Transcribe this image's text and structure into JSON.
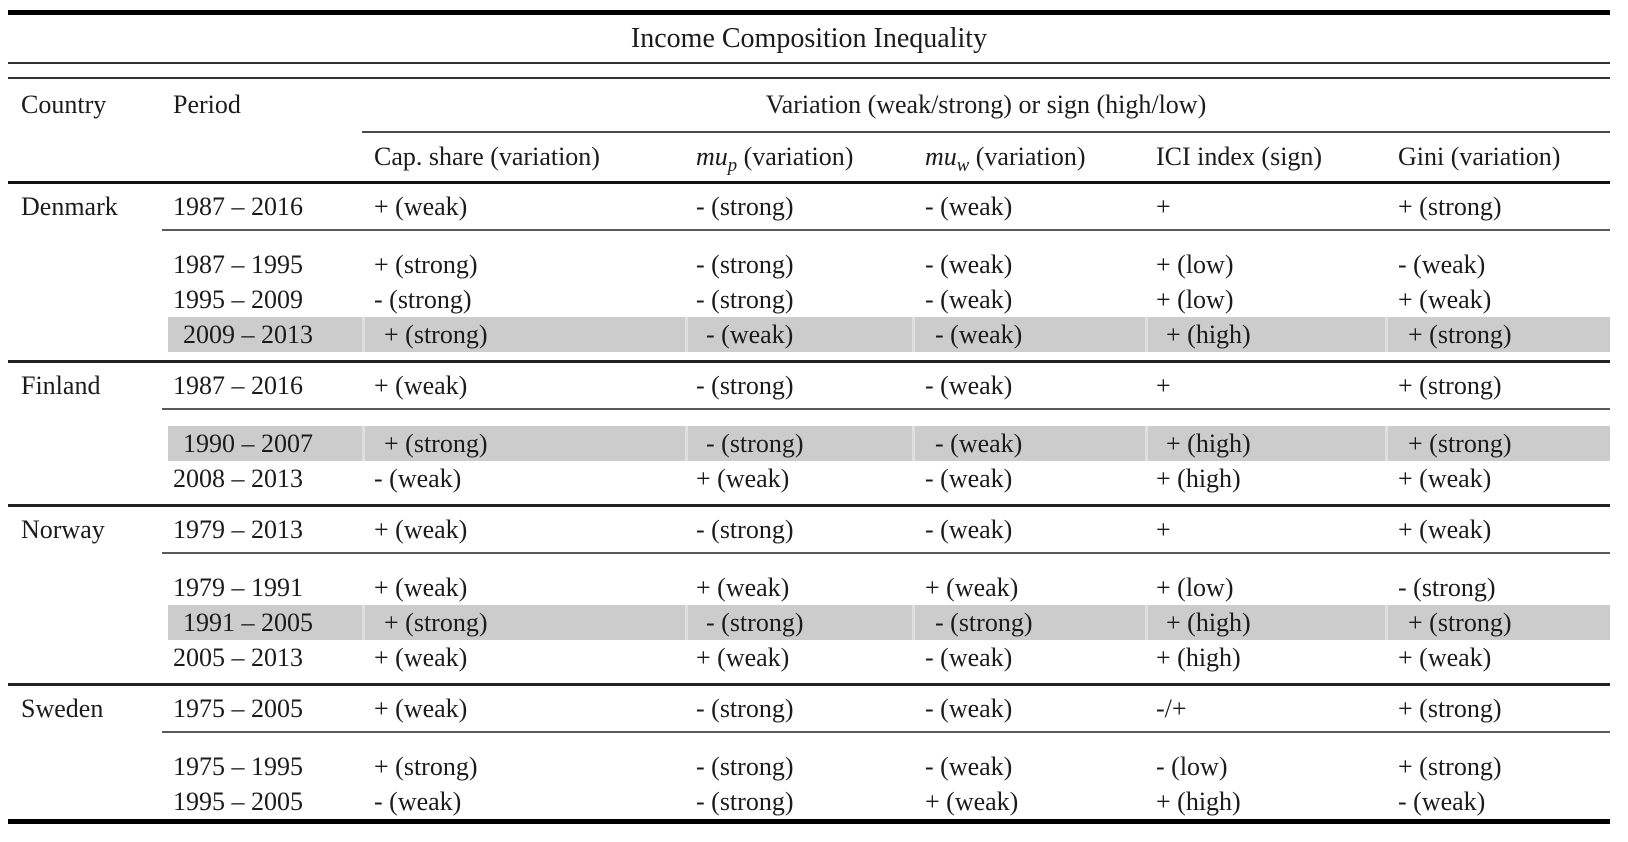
{
  "title": "Income Composition Inequality",
  "colors": {
    "highlight": "#cccccc",
    "seam": "#dfdfdf",
    "text": "#1b1b1b"
  },
  "header": {
    "country": "Country",
    "period": "Period",
    "span": "Variation (weak/strong) or sign (high/low)",
    "columns": [
      {
        "plain": "Cap. share (variation)",
        "it": "",
        "sub": "",
        "rest": ""
      },
      {
        "plain": "",
        "it": "mu",
        "sub": "p",
        "rest": " (variation)"
      },
      {
        "plain": "",
        "it": "mu",
        "sub": "w",
        "rest": " (variation)"
      },
      {
        "plain": "ICI index (sign)",
        "it": "",
        "sub": "",
        "rest": ""
      },
      {
        "plain": "Gini (variation)",
        "it": "",
        "sub": "",
        "rest": ""
      }
    ]
  },
  "sections": [
    {
      "country": "Denmark",
      "summary": {
        "period": "1987 – 2016",
        "cells": [
          "+ (weak)",
          "- (strong)",
          "- (weak)",
          "+",
          "+ (strong)"
        ]
      },
      "rows": [
        {
          "period": "1987 – 1995",
          "highlight": false,
          "cells": [
            "+ (strong)",
            "- (strong)",
            "- (weak)",
            "+ (low)",
            "- (weak)"
          ]
        },
        {
          "period": "1995 – 2009",
          "highlight": false,
          "cells": [
            "- (strong)",
            "- (strong)",
            "- (weak)",
            "+ (low)",
            "+ (weak)"
          ]
        },
        {
          "period": "2009 – 2013",
          "highlight": true,
          "cells": [
            "+ (strong)",
            "- (weak)",
            "- (weak)",
            "+ (high)",
            "+ (strong)"
          ]
        }
      ]
    },
    {
      "country": "Finland",
      "summary": {
        "period": "1987 – 2016",
        "cells": [
          "+ (weak)",
          "- (strong)",
          "- (weak)",
          "+",
          "+ (strong)"
        ]
      },
      "rows": [
        {
          "period": "1990 – 2007",
          "highlight": true,
          "cells": [
            "+ (strong)",
            "- (strong)",
            "- (weak)",
            "+ (high)",
            "+ (strong)"
          ]
        },
        {
          "period": "2008 – 2013",
          "highlight": false,
          "cells": [
            "- (weak)",
            "+ (weak)",
            "- (weak)",
            "+ (high)",
            "+ (weak)"
          ]
        }
      ]
    },
    {
      "country": "Norway",
      "summary": {
        "period": "1979 – 2013",
        "cells": [
          "+ (weak)",
          "- (strong)",
          "- (weak)",
          "+",
          "+ (weak)"
        ]
      },
      "rows": [
        {
          "period": "1979 – 1991",
          "highlight": false,
          "cells": [
            "+ (weak)",
            "+ (weak)",
            "+ (weak)",
            "+ (low)",
            "- (strong)"
          ]
        },
        {
          "period": "1991 – 2005",
          "highlight": true,
          "cells": [
            "+ (strong)",
            "- (strong)",
            "- (strong)",
            "+ (high)",
            "+ (strong)"
          ]
        },
        {
          "period": "2005 – 2013",
          "highlight": false,
          "cells": [
            "+ (weak)",
            "+ (weak)",
            "- (weak)",
            "+ (high)",
            "+ (weak)"
          ]
        }
      ]
    },
    {
      "country": "Sweden",
      "summary": {
        "period": "1975 – 2005",
        "cells": [
          "+ (weak)",
          "- (strong)",
          "- (weak)",
          "-/+",
          "+ (strong)"
        ]
      },
      "rows": [
        {
          "period": "1975 – 1995",
          "highlight": false,
          "cells": [
            "+ (strong)",
            "- (strong)",
            "- (weak)",
            "- (low)",
            "+ (strong)"
          ]
        },
        {
          "period": "1995 – 2005",
          "highlight": false,
          "cells": [
            "- (weak)",
            "- (strong)",
            "+ (weak)",
            "+ (high)",
            "- (weak)"
          ]
        }
      ]
    }
  ]
}
